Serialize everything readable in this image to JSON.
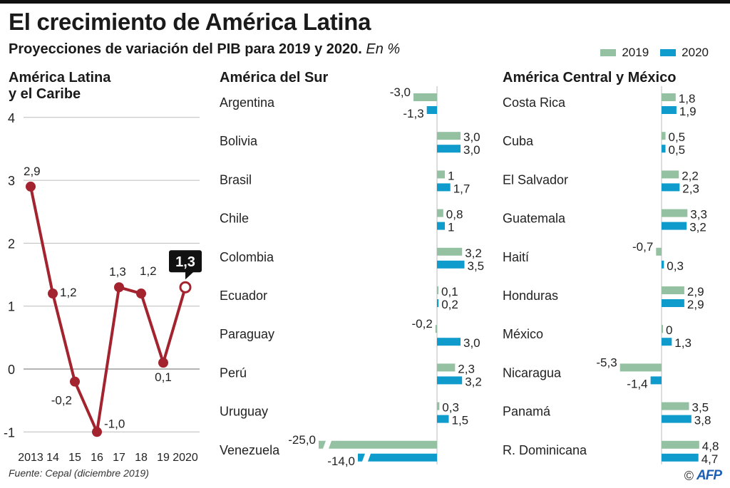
{
  "header": {
    "title": "El crecimiento de América Latina",
    "subtitle": "Proyecciones de variación del PIB para 2019 y 2020.",
    "subtitle_unit": "En %"
  },
  "legend": {
    "items": [
      {
        "label": "2019",
        "color": "#93c1a2"
      },
      {
        "label": "2020",
        "color": "#0f9bcc"
      }
    ]
  },
  "colors": {
    "line": "#a3232f",
    "bar_2019": "#93c1a2",
    "bar_2020": "#0f9bcc",
    "gridline": "#bbbbbb",
    "axis": "#bbbbbb",
    "callout_bg": "#111111"
  },
  "footer": {
    "source": "Fuente: Cepal (diciembre 2019)",
    "copyright": "©",
    "agency": "AFP"
  },
  "chart_data": [
    {
      "type": "line",
      "title": "América Latina y el Caribe",
      "title_lines": [
        "América Latina",
        "y el Caribe"
      ],
      "x": [
        "2013",
        "14",
        "15",
        "16",
        "17",
        "18",
        "19",
        "2020"
      ],
      "values": [
        2.9,
        1.2,
        -0.2,
        -1.0,
        1.3,
        1.2,
        0.1,
        1.3
      ],
      "labels": [
        "2,9",
        "1,2",
        "-0,2",
        "-1,0",
        "1,3",
        "1,2",
        "0,1",
        "1,3"
      ],
      "highlight_index": 7,
      "highlight_label": "1,3",
      "ylim": [
        -1,
        4
      ],
      "yticks": [
        "-1",
        "0",
        "1",
        "2",
        "3",
        "4"
      ],
      "ytick_values": [
        -1,
        0,
        1,
        2,
        3,
        4
      ],
      "grid": true,
      "xlabel": "",
      "ylabel": ""
    },
    {
      "type": "bar",
      "orientation": "horizontal",
      "title": "América del Sur",
      "categories": [
        "Argentina",
        "Bolivia",
        "Brasil",
        "Chile",
        "Colombia",
        "Ecuador",
        "Paraguay",
        "Perú",
        "Uruguay",
        "Venezuela"
      ],
      "series": [
        {
          "name": "2019",
          "values": [
            -3.0,
            3.0,
            1.0,
            0.8,
            3.2,
            0.1,
            -0.2,
            2.3,
            0.3,
            -25.0
          ],
          "labels": [
            "-3,0",
            "3,0",
            "1",
            "0,8",
            "3,2",
            "0,1",
            "-0,2",
            "2,3",
            "0,3",
            "-25,0"
          ]
        },
        {
          "name": "2020",
          "values": [
            -1.3,
            3.0,
            1.7,
            1.0,
            3.5,
            0.2,
            3.0,
            3.2,
            1.5,
            -14.0
          ],
          "labels": [
            "-1,3",
            "3,0",
            "1,7",
            "1",
            "3,5",
            "0,2",
            "3,0",
            "3,2",
            "1,5",
            "-14,0"
          ]
        }
      ],
      "truncated_bars": [
        "Venezuela"
      ]
    },
    {
      "type": "bar",
      "orientation": "horizontal",
      "title": "América Central y México",
      "categories": [
        "Costa Rica",
        "Cuba",
        "El Salvador",
        "Guatemala",
        "Haití",
        "Honduras",
        "México",
        "Nicaragua",
        "Panamá",
        "R. Dominicana"
      ],
      "series": [
        {
          "name": "2019",
          "values": [
            1.8,
            0.5,
            2.2,
            3.3,
            -0.7,
            2.9,
            0.0,
            -5.3,
            3.5,
            4.8
          ],
          "labels": [
            "1,8",
            "0,5",
            "2,2",
            "3,3",
            "-0,7",
            "2,9",
            "0",
            "-5,3",
            "3,5",
            "4,8"
          ]
        },
        {
          "name": "2020",
          "values": [
            1.9,
            0.5,
            2.3,
            3.2,
            0.3,
            2.9,
            1.3,
            -1.4,
            3.8,
            4.7
          ],
          "labels": [
            "1,9",
            "0,5",
            "2,3",
            "3,2",
            "0,3",
            "2,9",
            "1,3",
            "-1,4",
            "3,8",
            "4,7"
          ]
        }
      ]
    }
  ]
}
